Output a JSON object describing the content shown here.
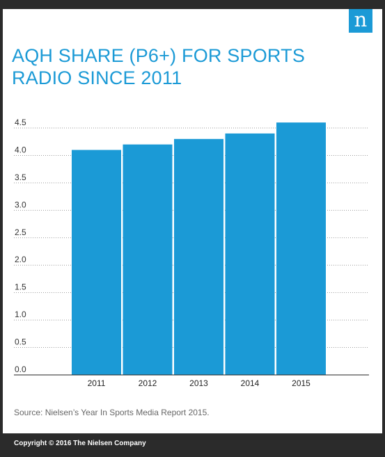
{
  "brand": {
    "logo_letter": "n",
    "accent_color": "#1b9ad6"
  },
  "title": "AQH SHARE (P6+) FOR  SPORTS RADIO SINCE 2011",
  "source": "Source: Nielsen’s Year In Sports Media Report 2015.",
  "copyright": "Copyright © 2016 The Nielsen Company",
  "chart_data": {
    "type": "bar",
    "title": "AQH SHARE (P6+) FOR  SPORTS RADIO SINCE 2011",
    "categories": [
      "2011",
      "2012",
      "2013",
      "2014",
      "2015"
    ],
    "values": [
      4.1,
      4.2,
      4.3,
      4.4,
      4.6
    ],
    "ylim": [
      0,
      4.5
    ],
    "yticks": [
      "0.0",
      "0.5",
      "1.0",
      "1.5",
      "2.0",
      "2.5",
      "3.0",
      "3.5",
      "4.0",
      "4.5"
    ],
    "xlabel": "",
    "ylabel": "",
    "grid": true,
    "grid_style": "dotted",
    "bar_color": "#1b9ad6",
    "legend": "none"
  }
}
